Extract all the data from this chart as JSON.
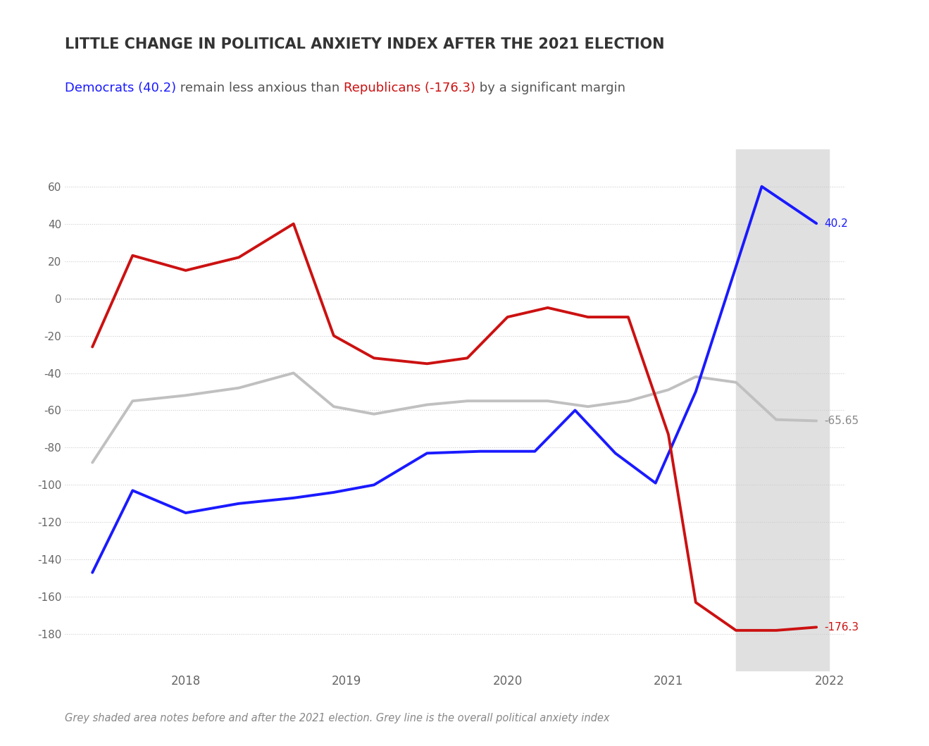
{
  "title": "LITTLE CHANGE IN POLITICAL ANXIETY INDEX AFTER THE 2021 ELECTION",
  "subtitle_parts": [
    {
      "text": "Democrats (40.2)",
      "color": "#1a1aff"
    },
    {
      "text": " remain less anxious than ",
      "color": "#555555"
    },
    {
      "text": "Republicans (-176.3)",
      "color": "#cc1111"
    },
    {
      "text": " by a significant margin",
      "color": "#555555"
    }
  ],
  "footnote": "Grey shaded area notes before and after the 2021 election. Grey line is the overall political anxiety index",
  "democrat_x": [
    2017.42,
    2017.67,
    2018.0,
    2018.33,
    2018.67,
    2018.92,
    2019.17,
    2019.5,
    2019.83,
    2020.17,
    2020.42,
    2020.67,
    2020.92,
    2021.17,
    2021.58,
    2021.92
  ],
  "democrat_y": [
    -147,
    -103,
    -115,
    -110,
    -107,
    -104,
    -100,
    -83,
    -82,
    -82,
    -60,
    -83,
    -99,
    -50,
    60,
    40.2
  ],
  "republican_x": [
    2017.42,
    2017.67,
    2018.0,
    2018.33,
    2018.67,
    2018.92,
    2019.17,
    2019.5,
    2019.75,
    2020.0,
    2020.25,
    2020.5,
    2020.75,
    2021.0,
    2021.17,
    2021.42,
    2021.67,
    2021.92
  ],
  "republican_y": [
    -26,
    23,
    15,
    22,
    40,
    -20,
    -32,
    -35,
    -32,
    -10,
    -5,
    -10,
    -10,
    -73,
    -163,
    -178,
    -178,
    -176.3
  ],
  "overall_x": [
    2017.42,
    2017.67,
    2018.0,
    2018.33,
    2018.67,
    2018.92,
    2019.17,
    2019.5,
    2019.75,
    2020.0,
    2020.25,
    2020.5,
    2020.75,
    2021.0,
    2021.17,
    2021.42,
    2021.67,
    2021.92
  ],
  "overall_y": [
    -88,
    -55,
    -52,
    -48,
    -40,
    -58,
    -62,
    -57,
    -55,
    -55,
    -55,
    -58,
    -55,
    -49,
    -42,
    -45,
    -65,
    -65.65
  ],
  "democrat_color": "#1a1aff",
  "republican_color": "#cc1111",
  "overall_color": "#c0c0c0",
  "shaded_xmin": 2021.42,
  "shaded_xmax": 2022.0,
  "shaded_color": "#e0e0e0",
  "ylim": [
    -200,
    80
  ],
  "xlim": [
    2017.25,
    2022.1
  ],
  "yticks": [
    60,
    40,
    20,
    0,
    -20,
    -40,
    -60,
    -80,
    -100,
    -120,
    -140,
    -160,
    -180
  ],
  "xtick_positions": [
    2018.0,
    2019.0,
    2020.0,
    2021.0,
    2022.0
  ],
  "xtick_labels": [
    "2018",
    "2019",
    "2020",
    "2021",
    "2022"
  ],
  "dem_label_value": "40.2",
  "rep_label_value": "-176.3",
  "overall_label_value": "-65.65",
  "title_fontsize": 15,
  "subtitle_fontsize": 13,
  "footnote_fontsize": 10.5,
  "line_width": 2.8,
  "background_color": "#ffffff"
}
